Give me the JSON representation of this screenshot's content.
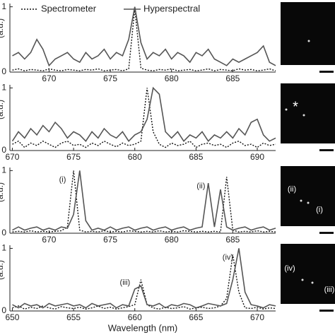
{
  "chart_data": [
    {
      "type": "line",
      "x": [
        667,
        667.5,
        668,
        668.5,
        669,
        669.5,
        670,
        670.5,
        671,
        671.5,
        672,
        672.5,
        673,
        673.5,
        674,
        674.5,
        675,
        675.5,
        676,
        676.5,
        677,
        677.5,
        678,
        678.5,
        679,
        679.5,
        680,
        680.5,
        681,
        681.5,
        682,
        682.5,
        683,
        683.5,
        684,
        684.5,
        685,
        685.5,
        686,
        686.5,
        687,
        687.5,
        688,
        688.5
      ],
      "xlim": [
        666.8,
        688.5
      ],
      "xticks": [
        670,
        675,
        680,
        685
      ],
      "ylim": [
        0,
        1.05
      ],
      "yticks": [
        0,
        1
      ],
      "ylabel": "(a.u.)",
      "legend": "top",
      "series": [
        {
          "name": "Spectrometer",
          "color": "#111111",
          "dash": true,
          "values": [
            0.03,
            0.05,
            0.02,
            0.04,
            0.03,
            0.02,
            0.05,
            0.03,
            0.02,
            0.04,
            0.03,
            0.02,
            0.04,
            0.03,
            0.05,
            0.02,
            0.03,
            0.04,
            0.02,
            0.05,
            0.97,
            0.06,
            0.03,
            0.02,
            0.04,
            0.03,
            0.05,
            0.02,
            0.03,
            0.04,
            0.02,
            0.03,
            0.05,
            0.02,
            0.04,
            0.03,
            0.02,
            0.05,
            0.03,
            0.04,
            0.02,
            0.03,
            0.05,
            0.02
          ]
        },
        {
          "name": "Hyperspectral",
          "color": "#555555",
          "dash": false,
          "values": [
            0.25,
            0.3,
            0.2,
            0.3,
            0.5,
            0.35,
            0.1,
            0.2,
            0.25,
            0.3,
            0.2,
            0.15,
            0.3,
            0.2,
            0.25,
            0.35,
            0.2,
            0.3,
            0.25,
            0.5,
            1.0,
            0.45,
            0.2,
            0.3,
            0.25,
            0.35,
            0.2,
            0.3,
            0.25,
            0.15,
            0.3,
            0.25,
            0.35,
            0.2,
            0.15,
            0.1,
            0.2,
            0.15,
            0.2,
            0.25,
            0.3,
            0.4,
            0.15,
            0.1
          ]
        }
      ],
      "annotations": [],
      "image_labels": []
    },
    {
      "type": "line",
      "x": [
        670,
        670.5,
        671,
        671.5,
        672,
        672.5,
        673,
        673.5,
        674,
        674.5,
        675,
        675.5,
        676,
        676.5,
        677,
        677.5,
        678,
        678.5,
        679,
        679.5,
        680,
        680.5,
        681,
        681.5,
        682,
        682.5,
        683,
        683.5,
        684,
        684.5,
        685,
        685.5,
        686,
        686.5,
        687,
        687.5,
        688,
        688.5,
        689,
        689.5,
        690,
        690.5,
        691,
        691.5
      ],
      "xlim": [
        669.8,
        691.5
      ],
      "xticks": [
        670,
        675,
        680,
        685,
        690
      ],
      "ylim": [
        0,
        1.05
      ],
      "yticks": [
        0,
        1
      ],
      "ylabel": "(a.u.)",
      "series": [
        {
          "color": "#111111",
          "dash": true,
          "values": [
            0.1,
            0.15,
            0.05,
            0.12,
            0.08,
            0.15,
            0.1,
            0.05,
            0.12,
            0.15,
            0.08,
            0.1,
            0.05,
            0.12,
            0.08,
            0.15,
            0.1,
            0.06,
            0.12,
            0.08,
            0.1,
            0.15,
            1.0,
            0.3,
            0.1,
            0.05,
            0.12,
            0.08,
            0.1,
            0.15,
            0.05,
            0.1,
            0.12,
            0.08,
            0.1,
            0.05,
            0.12,
            0.15,
            0.08,
            0.1,
            0.05,
            0.12,
            0.08,
            0.1
          ]
        },
        {
          "color": "#555555",
          "dash": false,
          "values": [
            0.15,
            0.3,
            0.2,
            0.35,
            0.25,
            0.4,
            0.3,
            0.45,
            0.35,
            0.2,
            0.3,
            0.25,
            0.15,
            0.3,
            0.2,
            0.35,
            0.25,
            0.2,
            0.3,
            0.15,
            0.25,
            0.3,
            0.5,
            1.0,
            0.9,
            0.3,
            0.2,
            0.3,
            0.15,
            0.25,
            0.2,
            0.3,
            0.15,
            0.25,
            0.2,
            0.3,
            0.2,
            0.35,
            0.25,
            0.45,
            0.5,
            0.25,
            0.15,
            0.2
          ]
        }
      ],
      "annotations": [],
      "image_labels": [
        "*"
      ]
    },
    {
      "type": "line",
      "x": [
        667,
        667.5,
        668,
        668.5,
        669,
        669.5,
        670,
        670.5,
        671,
        671.5,
        672,
        672.5,
        673,
        673.5,
        674,
        674.5,
        675,
        675.5,
        676,
        676.5,
        677,
        677.5,
        678,
        678.5,
        679,
        679.5,
        680,
        680.5,
        681,
        681.5,
        682,
        682.5,
        683,
        683.5,
        684,
        684.5,
        685,
        685.5,
        686,
        686.5,
        687,
        687.5,
        688,
        688.5
      ],
      "xlim": [
        666.8,
        688.5
      ],
      "xticks": [
        670,
        675,
        680,
        685
      ],
      "ylim": [
        0,
        1.05
      ],
      "yticks": [
        0,
        1
      ],
      "ylabel": "(a.u.)",
      "series": [
        {
          "color": "#111111",
          "dash": true,
          "values": [
            0.02,
            0.03,
            0.02,
            0.04,
            0.02,
            0.03,
            0.02,
            0.03,
            0.04,
            0.1,
            1.0,
            0.05,
            0.02,
            0.03,
            0.02,
            0.04,
            0.02,
            0.03,
            0.02,
            0.04,
            0.03,
            0.02,
            0.03,
            0.02,
            0.04,
            0.02,
            0.03,
            0.02,
            0.04,
            0.03,
            0.02,
            0.03,
            0.02,
            0.03,
            0.02,
            0.9,
            0.05,
            0.02,
            0.03,
            0.02,
            0.04,
            0.02,
            0.03,
            0.02
          ]
        },
        {
          "color": "#555555",
          "dash": false,
          "values": [
            0.05,
            0.1,
            0.05,
            0.08,
            0.1,
            0.05,
            0.08,
            0.05,
            0.1,
            0.08,
            0.3,
            1.0,
            0.2,
            0.05,
            0.08,
            0.05,
            0.1,
            0.05,
            0.08,
            0.1,
            0.05,
            0.08,
            0.1,
            0.05,
            0.08,
            0.1,
            0.05,
            0.08,
            0.1,
            0.05,
            0.08,
            0.1,
            0.8,
            0.1,
            0.7,
            0.1,
            0.05,
            0.08,
            0.1,
            0.05,
            0.08,
            0.1,
            0.05,
            0.08
          ]
        }
      ],
      "annotations": [
        {
          "text": "(i)",
          "x": 671.1,
          "y": 0.85
        },
        {
          "text": "(ii)",
          "x": 682.4,
          "y": 0.75
        }
      ],
      "image_labels": [
        "(ii)",
        "(i)"
      ]
    },
    {
      "type": "line",
      "x": [
        650,
        650.5,
        651,
        651.5,
        652,
        652.5,
        653,
        653.5,
        654,
        654.5,
        655,
        655.5,
        656,
        656.5,
        657,
        657.5,
        658,
        658.5,
        659,
        659.5,
        660,
        660.5,
        661,
        661.5,
        662,
        662.5,
        663,
        663.5,
        664,
        664.5,
        665,
        665.5,
        666,
        666.5,
        667,
        667.5,
        668,
        668.5,
        669,
        669.5,
        670,
        670.5,
        671,
        671.5
      ],
      "xlim": [
        649.8,
        671.5
      ],
      "xticks": [
        650,
        655,
        660,
        665,
        670
      ],
      "ylim": [
        0,
        1.05
      ],
      "yticks": [
        0,
        1
      ],
      "ylabel": "(a.u.)",
      "xlabel": "Wavelength (nm)",
      "series": [
        {
          "color": "#111111",
          "dash": true,
          "values": [
            0.05,
            0.08,
            0.03,
            0.06,
            0.04,
            0.08,
            0.05,
            0.03,
            0.07,
            0.05,
            0.04,
            0.06,
            0.03,
            0.05,
            0.08,
            0.04,
            0.06,
            0.03,
            0.05,
            0.07,
            0.1,
            0.5,
            0.1,
            0.05,
            0.03,
            0.06,
            0.04,
            0.05,
            0.07,
            0.03,
            0.05,
            0.06,
            0.04,
            0.05,
            0.08,
            0.2,
            0.9,
            0.3,
            0.05,
            0.04,
            0.06,
            0.03,
            0.05,
            0.04
          ]
        },
        {
          "color": "#555555",
          "dash": false,
          "values": [
            0.1,
            0.05,
            0.12,
            0.08,
            0.1,
            0.05,
            0.12,
            0.08,
            0.1,
            0.12,
            0.08,
            0.1,
            0.05,
            0.12,
            0.08,
            0.1,
            0.12,
            0.05,
            0.1,
            0.08,
            0.35,
            0.4,
            0.1,
            0.08,
            0.12,
            0.05,
            0.1,
            0.08,
            0.12,
            0.1,
            0.05,
            0.08,
            0.12,
            0.1,
            0.08,
            0.12,
            0.5,
            1.0,
            0.3,
            0.1,
            0.08,
            0.05,
            0.1,
            0.08
          ]
        }
      ],
      "annotations": [
        {
          "text": "(iii)",
          "x": 659.2,
          "y": 0.45
        },
        {
          "text": "(iv)",
          "x": 667.6,
          "y": 0.85
        }
      ],
      "image_labels": [
        "(iv)",
        "(iii)"
      ]
    }
  ]
}
